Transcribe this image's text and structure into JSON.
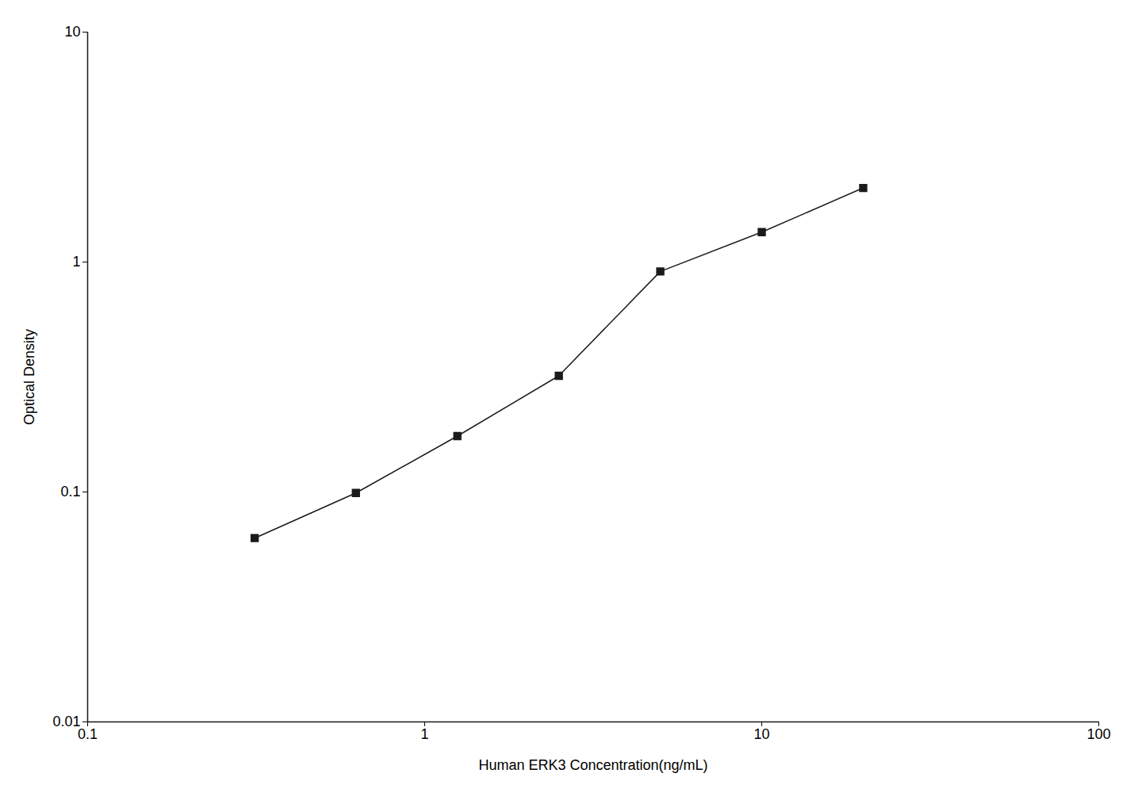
{
  "chart_data": {
    "type": "line",
    "x": [
      0.313,
      0.625,
      1.25,
      2.5,
      5.0,
      10.0,
      20.0
    ],
    "values": [
      0.063,
      0.099,
      0.175,
      0.32,
      0.91,
      1.35,
      2.1
    ],
    "xlabel": "Human ERK3 Concentration(ng/mL)",
    "ylabel": "Optical Density",
    "xlim": [
      0.1,
      100
    ],
    "ylim": [
      0.01,
      10
    ],
    "xticks": [
      0.1,
      1,
      10,
      100
    ],
    "yticks": [
      0.01,
      0.1,
      1,
      10
    ],
    "log": true,
    "color": "#1a1a1a",
    "marker": "square",
    "grid": false
  }
}
